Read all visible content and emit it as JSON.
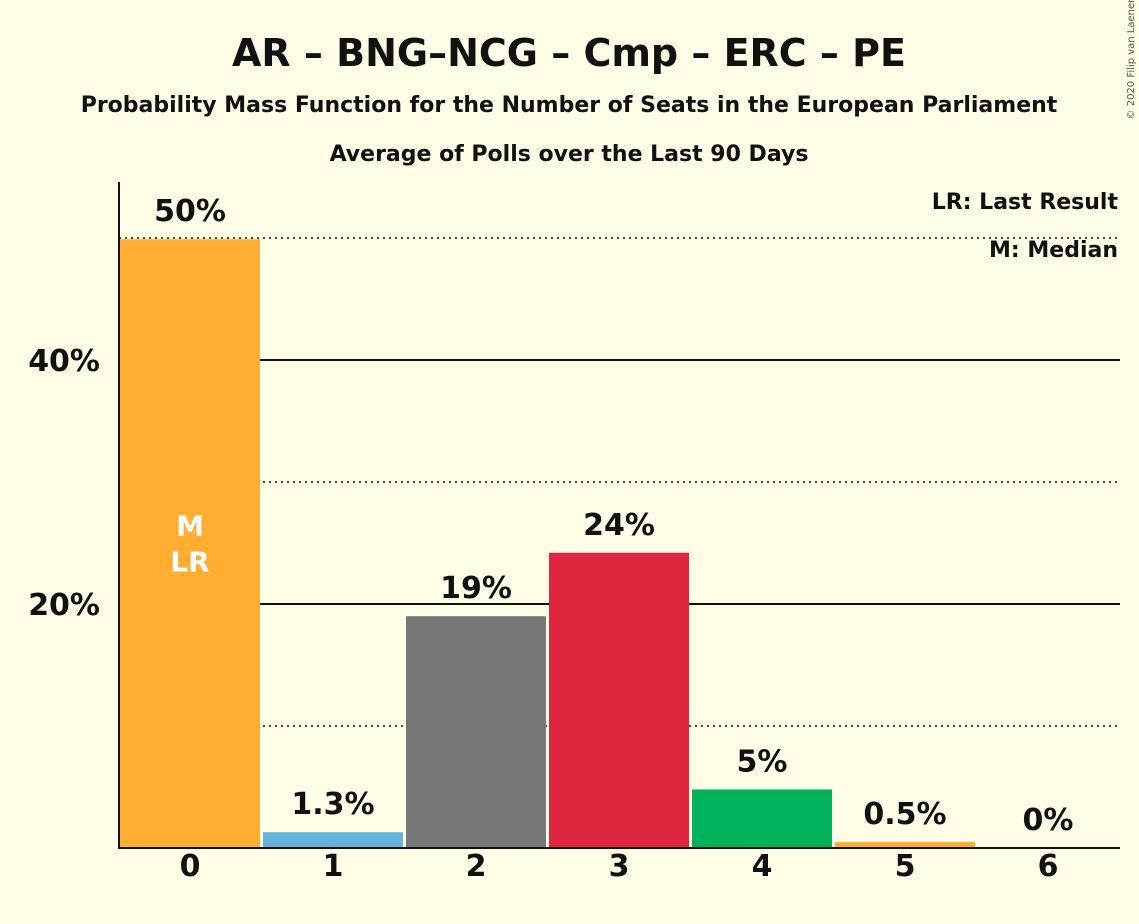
{
  "chart_data": {
    "type": "bar",
    "title": "AR – BNG–NCG – Cmp – ERC – PE",
    "subtitle": "Probability Mass Function for the Number of Seats in the European Parliament",
    "subtitle2": "Average of Polls over the Last 90 Days",
    "copyright": "© 2020 Filip van Laenen",
    "legend": {
      "placement": "top-right",
      "entries": [
        "LR: Last Result",
        "M: Median"
      ]
    },
    "categories": [
      "0",
      "1",
      "2",
      "3",
      "4",
      "5",
      "6"
    ],
    "values": [
      49.9,
      1.3,
      19.0,
      24.2,
      4.8,
      0.5,
      0.0
    ],
    "data_labels": [
      "50%",
      "1.3%",
      "19%",
      "24%",
      "5%",
      "0.5%",
      "0%"
    ],
    "colors": [
      "#ffae32",
      "#66b3e0",
      "#777777",
      "#e0253f",
      "#00b35a",
      "#ffae32",
      "#ffae32"
    ],
    "bar_annotation": {
      "index": 0,
      "lines": [
        "M",
        "LR"
      ]
    },
    "yticks": [
      {
        "value": 20,
        "label": "20%"
      },
      {
        "value": 40,
        "label": "40%"
      }
    ],
    "gridlines_solid": [
      20,
      40
    ],
    "gridlines_dotted": [
      10,
      30,
      50
    ],
    "ylim": [
      0,
      54
    ],
    "grid": true
  }
}
